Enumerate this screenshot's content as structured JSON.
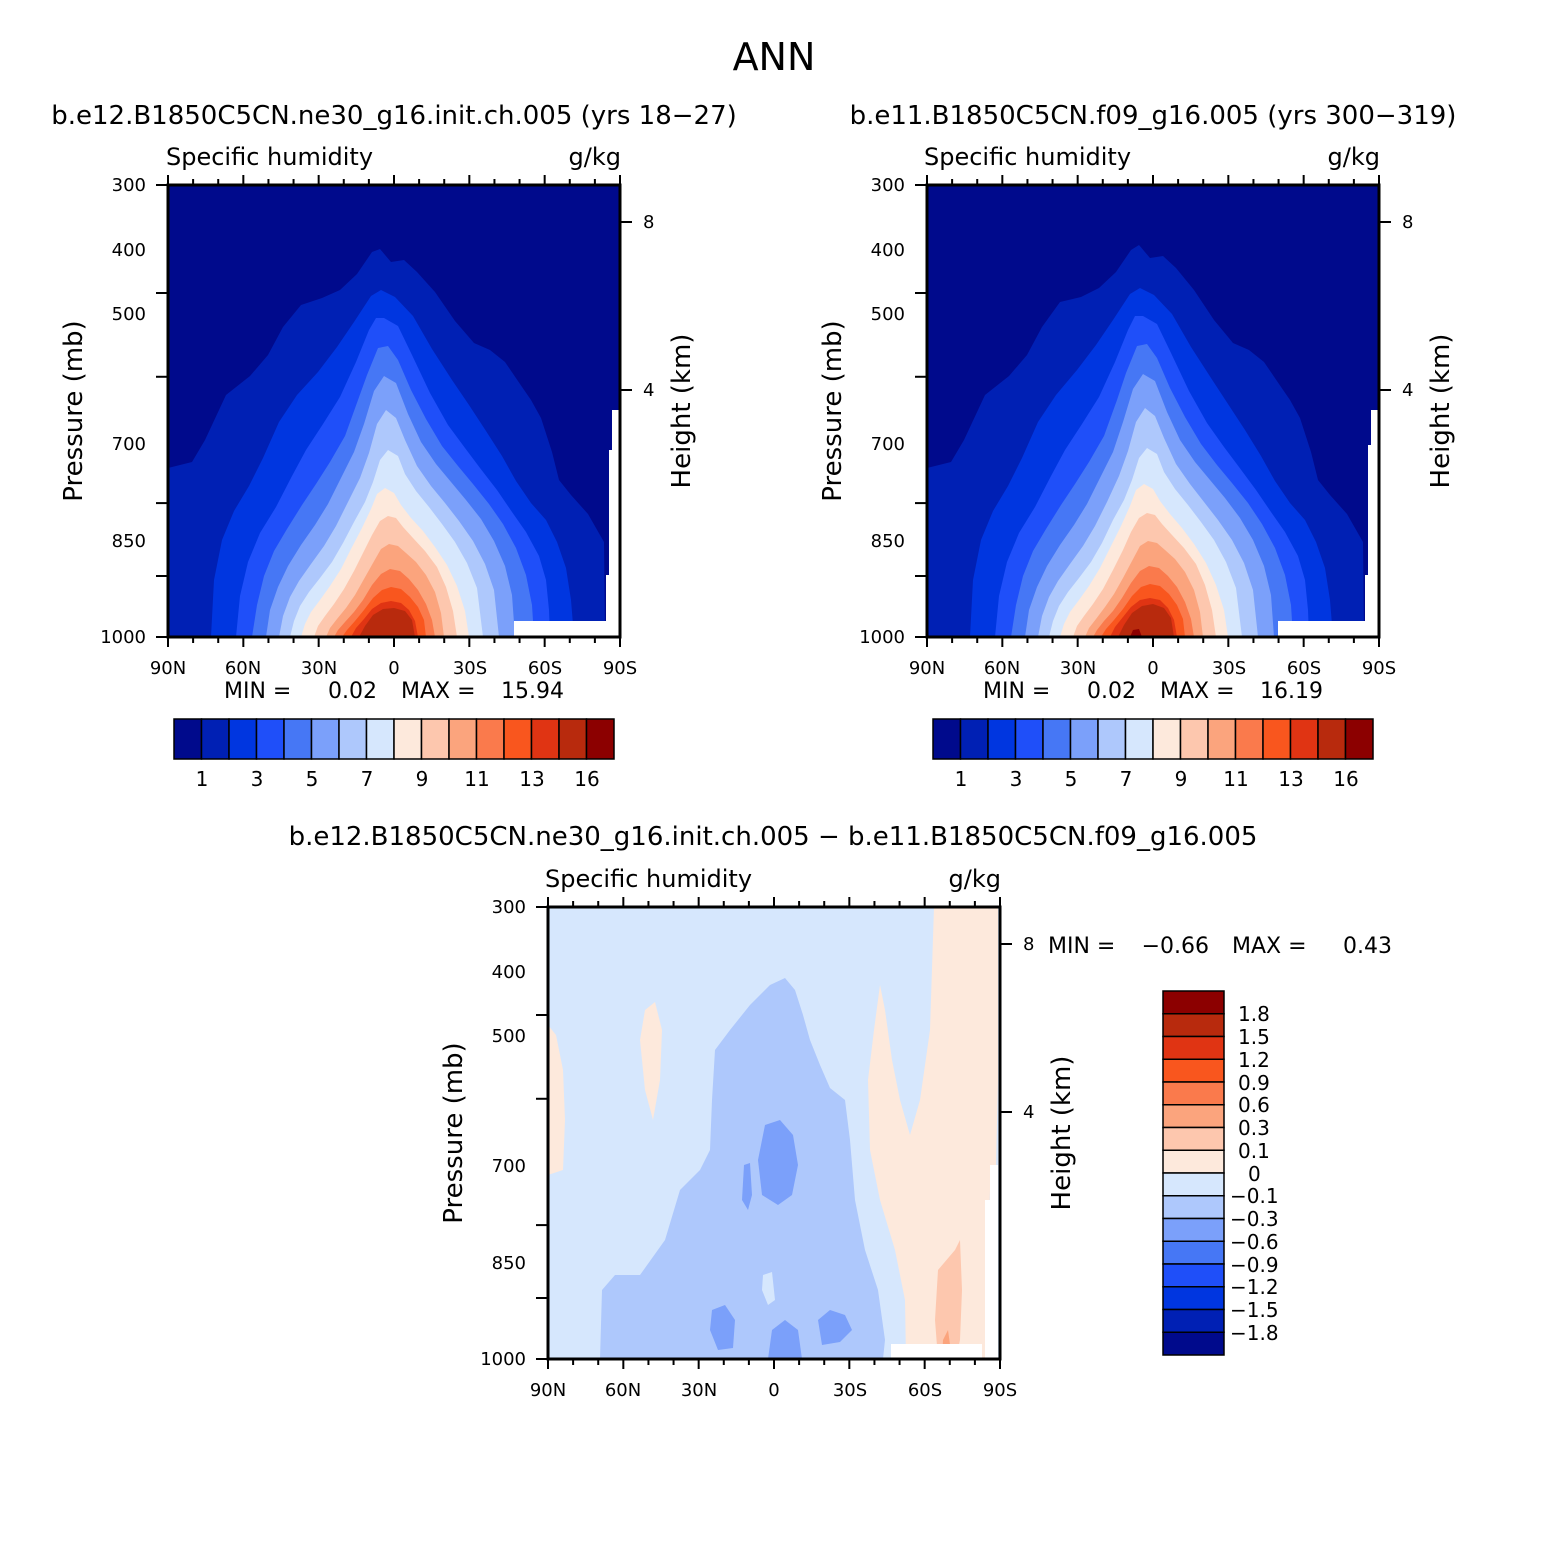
{
  "figure_title": "ANN",
  "colors": {
    "abs_palette": [
      "#000a8c",
      "#0020b4",
      "#0036e0",
      "#1f4ff9",
      "#4677f5",
      "#7ba0fa",
      "#aec8fc",
      "#d6e7fd",
      "#fde9dc",
      "#fdc7ae",
      "#fba47d",
      "#fa7a4c",
      "#f9561e",
      "#e03413",
      "#b82a0d",
      "#8c0000"
    ],
    "diff_palette": [
      "#000a8c",
      "#0020b4",
      "#0036e0",
      "#1f4ff9",
      "#4677f5",
      "#7ba0fa",
      "#aec8fc",
      "#d6e7fd",
      "#fde9dc",
      "#fdc7ae",
      "#fba47d",
      "#fa7a4c",
      "#f9561e",
      "#e03413",
      "#b82a0d",
      "#8c0000"
    ]
  },
  "chart_data": [
    {
      "type": "heatmap",
      "subtype": "latitude-pressure filled contour",
      "title": "b.e12.B1850C5CN.ne30_g16.init.ch.005 (yrs 18-27)",
      "left_label": "Specific humidity",
      "right_label": "g/kg",
      "ylabel": "Pressure (mb)",
      "ylabel_right": "Height (km)",
      "x_ticks": [
        "90N",
        "60N",
        "30N",
        "0",
        "30S",
        "60S",
        "90S"
      ],
      "y_ticks": [
        "300",
        "400",
        "500",
        "700",
        "850",
        "1000"
      ],
      "y_right_ticks": [
        "8",
        "4"
      ],
      "min_label": "MIN =",
      "min_value": "0.02",
      "max_label": "MAX =",
      "max_value": "15.94",
      "colorbar_labels": [
        "1",
        "3",
        "5",
        "7",
        "9",
        "11",
        "13",
        "16"
      ],
      "peak_latitude": 0,
      "peak_level": 1000
    },
    {
      "type": "heatmap",
      "subtype": "latitude-pressure filled contour",
      "title": "b.e11.B1850C5CN.f09_g16.005 (yrs 300-319)",
      "left_label": "Specific humidity",
      "right_label": "g/kg",
      "ylabel": "Pressure (mb)",
      "ylabel_right": "Height (km)",
      "x_ticks": [
        "90N",
        "60N",
        "30N",
        "0",
        "30S",
        "60S",
        "90S"
      ],
      "y_ticks": [
        "300",
        "400",
        "500",
        "700",
        "850",
        "1000"
      ],
      "y_right_ticks": [
        "8",
        "4"
      ],
      "min_label": "MIN =",
      "min_value": "0.02",
      "max_label": "MAX =",
      "max_value": "16.19",
      "colorbar_labels": [
        "1",
        "3",
        "5",
        "7",
        "9",
        "11",
        "13",
        "16"
      ],
      "peak_latitude": 0,
      "peak_level": 1000
    },
    {
      "type": "heatmap",
      "subtype": "latitude-pressure difference contour",
      "title": "b.e12.B1850C5CN.ne30_g16.init.ch.005 - b.e11.B1850C5CN.f09_g16.005",
      "left_label": "Specific humidity",
      "right_label": "g/kg",
      "ylabel": "Pressure (mb)",
      "ylabel_right": "Height (km)",
      "x_ticks": [
        "90N",
        "60N",
        "30N",
        "0",
        "30S",
        "60S",
        "90S"
      ],
      "y_ticks": [
        "300",
        "400",
        "500",
        "700",
        "850",
        "1000"
      ],
      "y_right_ticks": [
        "8",
        "4"
      ],
      "min_label": "MIN =",
      "min_value": "-0.66",
      "max_label": "MAX =",
      "max_value": "0.43",
      "colorbar_labels": [
        "1.8",
        "1.5",
        "1.2",
        "0.9",
        "0.6",
        "0.3",
        "0.1",
        "0",
        "-0.1",
        "-0.3",
        "-0.6",
        "-0.9",
        "-1.2",
        "-1.5",
        "-1.8"
      ]
    }
  ]
}
